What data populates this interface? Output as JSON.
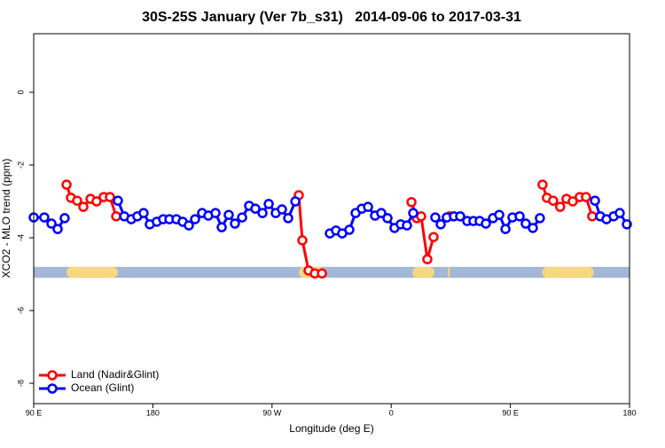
{
  "chart_data": {
    "type": "line",
    "title": "30S-25S January (Ver 7b_s31)   2014-09-06 to 2017-03-31",
    "x_label": "Longitude (deg E)",
    "y_label": "XCO2 - MLO trend (ppm)",
    "xlim": [
      90,
      540
    ],
    "ylim": [
      -8.56,
      1.61
    ],
    "xticks": [
      {
        "value": 90,
        "label": "90 E"
      },
      180,
      {
        "value": 270,
        "label": "90 W"
      },
      {
        "value": 360,
        "label": "0"
      },
      {
        "value": 450,
        "label": "90 E"
      },
      {
        "value": 540,
        "label": "180"
      }
    ],
    "yticks": [
      0,
      -2,
      -4,
      -6,
      -8
    ],
    "legend": "bottom-left",
    "band": {
      "y": [
        -4.8,
        -5.1
      ],
      "color": "#a3b8d6",
      "land_color": "#f7d87c",
      "land": [
        [
          114.8,
          153.6
        ],
        [
          290.2,
          309
        ],
        [
          376,
          392.7
        ],
        [
          402.8,
          404.3
        ],
        [
          474,
          513
        ]
      ]
    },
    "series": [
      {
        "name": "Land (Nadir&Glint)",
        "color": "#ff0000",
        "x": [
          114.8,
          118.1,
          122.8,
          127.5,
          132.9,
          137.5,
          142.9,
          147.6,
          152.3,
          null,
          290.2,
          292.9,
          297.6,
          302.3,
          307.7,
          null,
          375.3,
          379.3,
          382.6,
          387.3,
          392.0,
          null,
          404.1,
          null,
          474.3,
          477.6,
          482.3,
          487.6,
          492.4,
          497.1,
          502.4,
          507.1,
          511.8
        ],
        "values": [
          -2.54,
          -2.9,
          -2.98,
          -3.15,
          -2.93,
          -3.0,
          -2.88,
          -2.88,
          -3.41,
          null,
          -2.83,
          -4.07,
          -4.9,
          -4.98,
          -4.98,
          null,
          -3.02,
          -3.46,
          -3.41,
          -4.59,
          -3.98,
          null,
          -3.41,
          null,
          -2.54,
          -2.9,
          -2.98,
          -3.15,
          -2.93,
          -3.0,
          -2.88,
          -2.88,
          -3.41
        ]
      },
      {
        "name": "Ocean (Glint)",
        "color": "#0000ff",
        "x": [
          90,
          98.0,
          103.4,
          108.1,
          113.4,
          null,
          153.6,
          158.4,
          163.7,
          168.3,
          173.0,
          177.7,
          183.0,
          187.8,
          192.5,
          197.8,
          202.5,
          207.2,
          211.9,
          217.2,
          221.9,
          227.3,
          232.0,
          237.3,
          242.0,
          247.4,
          252.7,
          257.4,
          262.8,
          267.5,
          272.8,
          277.5,
          282.2,
          287.6,
          null,
          313.7,
          318.3,
          323.0,
          328.4,
          333.1,
          337.8,
          342.5,
          347.8,
          352.5,
          357.2,
          362.5,
          367.2,
          371.9,
          376.6,
          null,
          393.3,
          397.4,
          402.0,
          407.4,
          412.1,
          417.4,
          422.1,
          426.8,
          431.5,
          436.9,
          441.6,
          446.3,
          451.6,
          457.0,
          461.6,
          467.0,
          472.3,
          null,
          513.9,
          517.9,
          522.6,
          528.0,
          532.6,
          538.0
        ],
        "values": [
          -3.44,
          -3.44,
          -3.61,
          -3.76,
          -3.46,
          null,
          -2.98,
          -3.41,
          -3.49,
          -3.41,
          -3.32,
          -3.63,
          -3.56,
          -3.49,
          -3.49,
          -3.49,
          -3.56,
          -3.66,
          -3.49,
          -3.32,
          -3.39,
          -3.32,
          -3.71,
          -3.37,
          -3.61,
          -3.44,
          -3.12,
          -3.2,
          -3.32,
          -3.07,
          -3.32,
          -3.22,
          -3.46,
          -3.0,
          null,
          -3.88,
          -3.8,
          -3.88,
          -3.78,
          -3.32,
          -3.2,
          -3.15,
          -3.39,
          -3.32,
          -3.46,
          -3.73,
          -3.63,
          -3.66,
          -3.32,
          null,
          -3.44,
          -3.63,
          -3.44,
          -3.41,
          -3.41,
          -3.54,
          -3.54,
          -3.54,
          -3.61,
          -3.46,
          -3.37,
          -3.76,
          -3.44,
          -3.41,
          -3.61,
          -3.73,
          -3.46,
          null,
          -2.98,
          -3.41,
          -3.49,
          -3.41,
          -3.32,
          -3.63
        ]
      }
    ]
  }
}
